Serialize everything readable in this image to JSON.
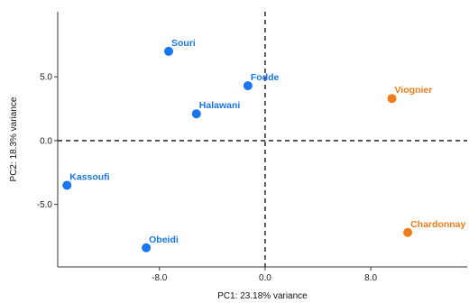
{
  "chart_data": {
    "type": "scatter",
    "xlabel": "PC1: 23.18% variance",
    "ylabel": "PC2: 18.3% variance",
    "xlim": [
      -15.7,
      15.3
    ],
    "ylim": [
      -9.9,
      10.1
    ],
    "x_ticks": [
      {
        "value": -8,
        "label": "-8.0"
      },
      {
        "value": 0,
        "label": "0.0"
      },
      {
        "value": 8,
        "label": "8.0"
      }
    ],
    "y_ticks": [
      {
        "value": 5,
        "label": "5.0"
      },
      {
        "value": 0,
        "label": "0.0"
      },
      {
        "value": -5,
        "label": "-5.0"
      }
    ],
    "zero_lines": true,
    "grid": false,
    "legend": false,
    "groups": [
      {
        "color": "#1976F0",
        "points": [
          {
            "label": "Souri",
            "x": -7.3,
            "y": 7.0
          },
          {
            "label": "Fodde",
            "x": -1.3,
            "y": 4.3
          },
          {
            "label": "Halawani",
            "x": -5.2,
            "y": 2.1
          },
          {
            "label": "Kassoufi",
            "x": -15.0,
            "y": -3.5
          },
          {
            "label": "Obeidi",
            "x": -9.0,
            "y": -8.4
          }
        ]
      },
      {
        "color": "#F07D1A",
        "points": [
          {
            "label": "Viognier",
            "x": 9.6,
            "y": 3.3
          },
          {
            "label": "Chardonnay",
            "x": 10.8,
            "y": -7.2
          }
        ]
      }
    ]
  }
}
